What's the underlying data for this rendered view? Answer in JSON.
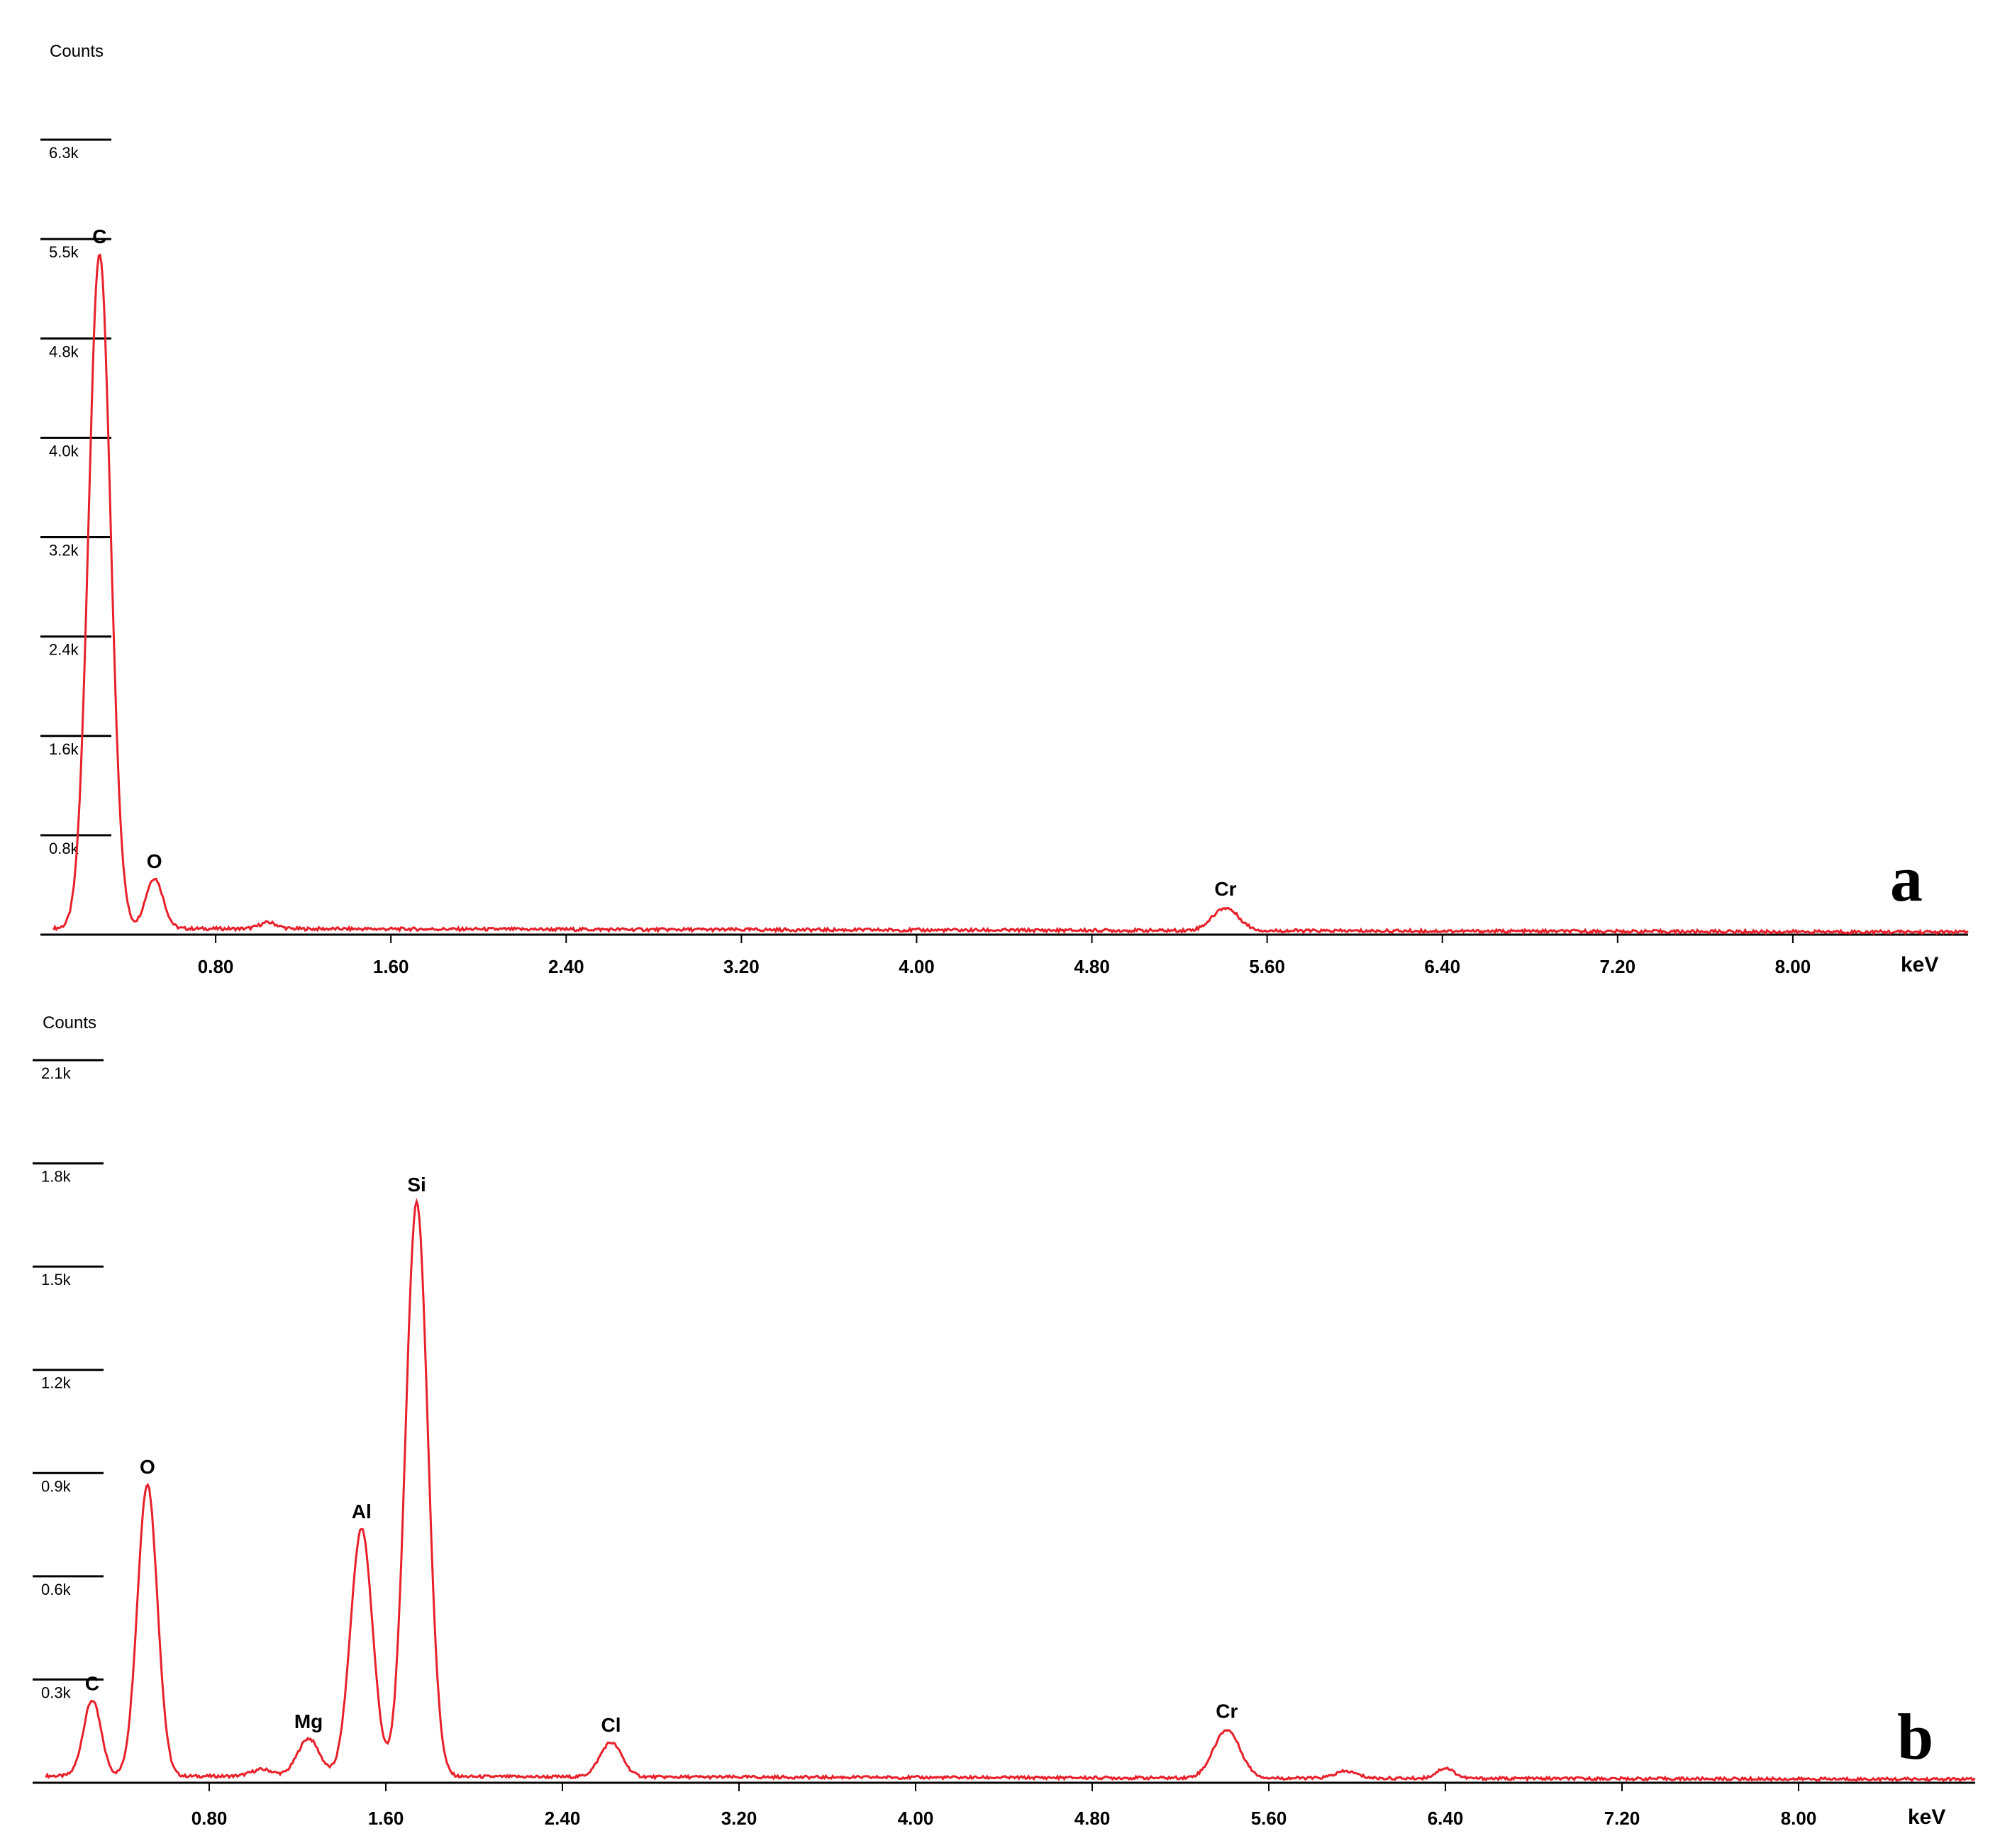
{
  "chart_data": [
    {
      "panel_label": "a",
      "type": "line",
      "ylabel": "Counts",
      "xlabel": "keV",
      "x_ticks": [
        "0.80",
        "1.60",
        "2.40",
        "3.20",
        "4.00",
        "4.80",
        "5.60",
        "6.40",
        "7.20",
        "8.00"
      ],
      "y_ticks": [
        "0.8k",
        "1.6k",
        "2.4k",
        "3.2k",
        "4.0k",
        "4.8k",
        "5.5k",
        "6.3k"
      ],
      "xlim": [
        0,
        8.8
      ],
      "ylim": [
        0,
        6.3
      ],
      "series_color": "#e8202a",
      "peaks": [
        {
          "element": "C",
          "energy": 0.27,
          "counts": 5.35,
          "width": 0.05
        },
        {
          "element": "O",
          "energy": 0.52,
          "counts": 0.4,
          "width": 0.04
        },
        {
          "element": "Cr",
          "energy": 5.41,
          "counts": 0.18,
          "width": 0.06
        }
      ],
      "minor_bumps": [
        {
          "energy": 1.04,
          "counts": 0.05,
          "width": 0.04
        }
      ],
      "baseline": {
        "start": 0.05,
        "end": 0.02
      }
    },
    {
      "panel_label": "b",
      "type": "line",
      "ylabel": "Counts",
      "xlabel": "keV",
      "x_ticks": [
        "0.80",
        "1.60",
        "2.40",
        "3.20",
        "4.00",
        "4.80",
        "5.60",
        "6.40",
        "7.20",
        "8.00"
      ],
      "y_ticks": [
        "0.3k",
        "0.6k",
        "0.9k",
        "1.2k",
        "1.5k",
        "1.8k",
        "2.1k"
      ],
      "xlim": [
        0,
        8.8
      ],
      "ylim": [
        0,
        2.1
      ],
      "series_color": "#e8202a",
      "peaks": [
        {
          "element": "C",
          "energy": 0.27,
          "counts": 0.22,
          "width": 0.04
        },
        {
          "element": "O",
          "energy": 0.52,
          "counts": 0.85,
          "width": 0.045
        },
        {
          "element": "Mg",
          "energy": 1.25,
          "counts": 0.11,
          "width": 0.05
        },
        {
          "element": "Al",
          "energy": 1.49,
          "counts": 0.72,
          "width": 0.05
        },
        {
          "element": "Si",
          "energy": 1.74,
          "counts": 1.67,
          "width": 0.05
        },
        {
          "element": "Cl",
          "energy": 2.62,
          "counts": 0.1,
          "width": 0.05
        },
        {
          "element": "Cr",
          "energy": 5.41,
          "counts": 0.14,
          "width": 0.06
        }
      ],
      "minor_bumps": [
        {
          "energy": 1.04,
          "counts": 0.02,
          "width": 0.05
        },
        {
          "energy": 5.95,
          "counts": 0.02,
          "width": 0.05
        },
        {
          "energy": 6.4,
          "counts": 0.03,
          "width": 0.04
        }
      ],
      "baseline": {
        "start": 0.02,
        "end": 0.01
      }
    }
  ]
}
